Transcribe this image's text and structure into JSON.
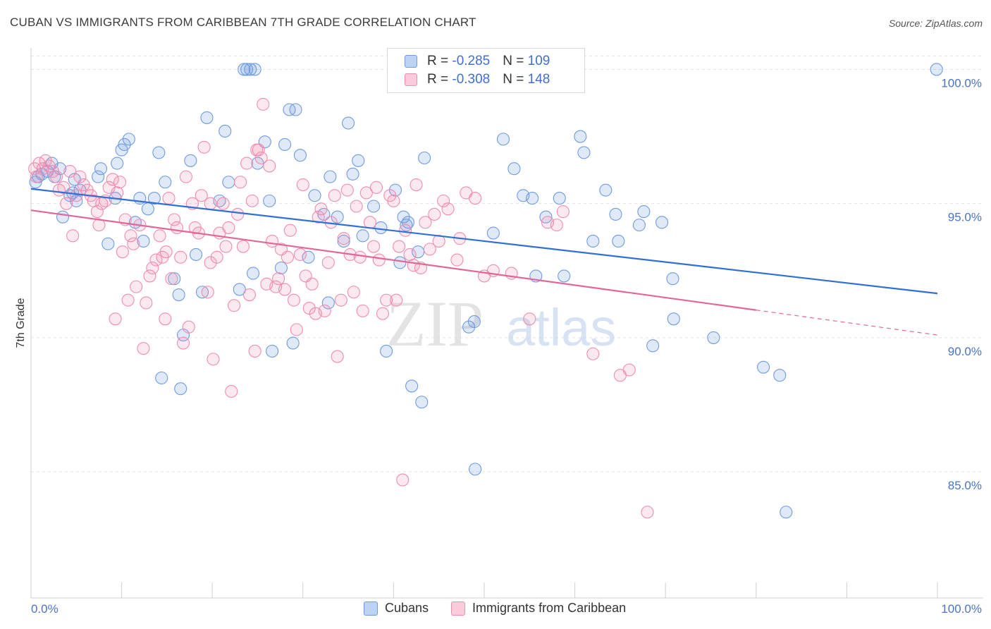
{
  "header": {
    "title": "CUBAN VS IMMIGRANTS FROM CARIBBEAN 7TH GRADE CORRELATION CHART",
    "source": "Source: ZipAtlas.com"
  },
  "watermark": {
    "zip": "ZIP",
    "atlas": "atlas"
  },
  "legend": {
    "rows": [
      {
        "r_label": "R = ",
        "r_value": "-0.285",
        "n_label": "N = ",
        "n_value": "109",
        "color": "#6f9be0"
      },
      {
        "r_label": "R = ",
        "r_value": "-0.308",
        "n_label": "N = ",
        "n_value": "148",
        "color": "#f08cb0"
      }
    ]
  },
  "bottom_legend": [
    {
      "label": "Cubans",
      "color": "#6f9be0"
    },
    {
      "label": "Immigrants from Caribbean",
      "color": "#f08cb0"
    }
  ],
  "chart_data": {
    "type": "scatter",
    "title": "CUBAN VS IMMIGRANTS FROM CARIBBEAN 7TH GRADE CORRELATION CHART",
    "xlabel": "",
    "ylabel": "7th Grade",
    "xlim": [
      0,
      100
    ],
    "ylim": [
      80.3,
      100.8
    ],
    "x_tick_labels": [
      "0.0%",
      "100.0%"
    ],
    "y_ticks": [
      85,
      90,
      95,
      100
    ],
    "y_tick_labels": [
      "85.0%",
      "90.0%",
      "95.0%",
      "100.0%"
    ],
    "grid": true,
    "series": [
      {
        "name": "Cubans",
        "color": "#6f9be0",
        "trend": {
          "x": [
            0,
            100
          ],
          "y": [
            95.55,
            91.65
          ],
          "dash_from": null
        },
        "points": [
          [
            0.5,
            95.8
          ],
          [
            0.8,
            96.0
          ],
          [
            1.2,
            96.1
          ],
          [
            1.8,
            96.2
          ],
          [
            2.3,
            96.5
          ],
          [
            2.6,
            96.0
          ],
          [
            3.2,
            96.3
          ],
          [
            3.5,
            94.5
          ],
          [
            4.3,
            95.3
          ],
          [
            4.6,
            95.4
          ],
          [
            4.8,
            95.9
          ],
          [
            5.0,
            95.1
          ],
          [
            5.4,
            95.5
          ],
          [
            7.4,
            96.0
          ],
          [
            7.7,
            96.3
          ],
          [
            8.5,
            93.5
          ],
          [
            9.3,
            95.2
          ],
          [
            9.5,
            96.5
          ],
          [
            10.0,
            97.0
          ],
          [
            10.3,
            97.2
          ],
          [
            10.8,
            97.4
          ],
          [
            11.5,
            94.3
          ],
          [
            12.0,
            95.2
          ],
          [
            12.4,
            93.6
          ],
          [
            12.9,
            94.8
          ],
          [
            13.6,
            95.2
          ],
          [
            14.1,
            96.9
          ],
          [
            14.4,
            88.5
          ],
          [
            14.8,
            95.8
          ],
          [
            15.8,
            92.2
          ],
          [
            16.3,
            91.6
          ],
          [
            16.5,
            88.1
          ],
          [
            16.8,
            90.1
          ],
          [
            17.6,
            96.6
          ],
          [
            18.2,
            93.1
          ],
          [
            18.9,
            91.7
          ],
          [
            19.4,
            98.2
          ],
          [
            20.8,
            95.1
          ],
          [
            21.4,
            97.7
          ],
          [
            21.8,
            95.8
          ],
          [
            23.0,
            91.8
          ],
          [
            23.5,
            100.0
          ],
          [
            24.2,
            100.0
          ],
          [
            24.5,
            92.4
          ],
          [
            25.0,
            96.5
          ],
          [
            25.8,
            97.3
          ],
          [
            26.3,
            95.1
          ],
          [
            26.6,
            89.5
          ],
          [
            27.6,
            92.6
          ],
          [
            28.0,
            97.2
          ],
          [
            28.5,
            98.5
          ],
          [
            28.9,
            89.8
          ],
          [
            29.2,
            98.5
          ],
          [
            29.7,
            96.8
          ],
          [
            30.6,
            93.0
          ],
          [
            31.3,
            95.3
          ],
          [
            32.3,
            94.6
          ],
          [
            32.8,
            91.3
          ],
          [
            33.0,
            96.0
          ],
          [
            33.8,
            94.5
          ],
          [
            34.5,
            93.6
          ],
          [
            35.0,
            98.0
          ],
          [
            35.5,
            96.1
          ],
          [
            36.1,
            96.6
          ],
          [
            36.6,
            93.8
          ],
          [
            37.8,
            94.9
          ],
          [
            38.6,
            94.1
          ],
          [
            39.2,
            89.5
          ],
          [
            40.2,
            95.5
          ],
          [
            40.7,
            92.8
          ],
          [
            41.1,
            94.5
          ],
          [
            41.4,
            94.2
          ],
          [
            41.6,
            94.3
          ],
          [
            42.0,
            88.2
          ],
          [
            42.7,
            93.2
          ],
          [
            43.1,
            87.6
          ],
          [
            43.4,
            96.7
          ],
          [
            48.3,
            90.4
          ],
          [
            48.9,
            90.6
          ],
          [
            49.0,
            85.1
          ],
          [
            51.0,
            93.9
          ],
          [
            52.1,
            97.4
          ],
          [
            53.3,
            96.3
          ],
          [
            54.3,
            95.3
          ],
          [
            55.3,
            95.2
          ],
          [
            55.7,
            92.3
          ],
          [
            56.8,
            94.5
          ],
          [
            58.3,
            95.2
          ],
          [
            58.8,
            92.3
          ],
          [
            60.6,
            97.5
          ],
          [
            61.0,
            96.9
          ],
          [
            62.0,
            93.6
          ],
          [
            63.4,
            95.5
          ],
          [
            64.5,
            94.6
          ],
          [
            64.8,
            93.6
          ],
          [
            67.1,
            94.2
          ],
          [
            67.6,
            94.7
          ],
          [
            68.6,
            89.7
          ],
          [
            69.6,
            94.3
          ],
          [
            70.8,
            92.2
          ],
          [
            70.9,
            90.7
          ],
          [
            75.3,
            90.0
          ],
          [
            80.8,
            88.9
          ],
          [
            82.6,
            88.6
          ],
          [
            83.3,
            83.5
          ],
          [
            23.8,
            100.0
          ],
          [
            24.7,
            100.0
          ],
          [
            99.9,
            100.0
          ]
        ]
      },
      {
        "name": "Immigrants from Caribbean",
        "color": "#f08cb0",
        "trend": {
          "x": [
            0,
            100
          ],
          "y": [
            94.75,
            90.1
          ],
          "dash_from": 80
        },
        "points": [
          [
            0.4,
            96.3
          ],
          [
            0.6,
            96.0
          ],
          [
            0.9,
            96.5
          ],
          [
            1.3,
            96.3
          ],
          [
            1.6,
            96.6
          ],
          [
            2.0,
            96.4
          ],
          [
            2.4,
            96.2
          ],
          [
            2.8,
            96.0
          ],
          [
            3.1,
            95.5
          ],
          [
            3.6,
            95.6
          ],
          [
            3.9,
            95.0
          ],
          [
            4.3,
            96.2
          ],
          [
            4.6,
            93.8
          ],
          [
            5.0,
            95.3
          ],
          [
            5.4,
            96.0
          ],
          [
            5.8,
            95.7
          ],
          [
            6.2,
            95.5
          ],
          [
            6.6,
            95.3
          ],
          [
            6.9,
            95.1
          ],
          [
            7.3,
            94.7
          ],
          [
            7.5,
            94.2
          ],
          [
            7.8,
            95.0
          ],
          [
            8.2,
            95.1
          ],
          [
            8.6,
            95.6
          ],
          [
            9.0,
            95.9
          ],
          [
            9.3,
            90.7
          ],
          [
            9.8,
            95.8
          ],
          [
            10.1,
            93.2
          ],
          [
            10.4,
            94.4
          ],
          [
            10.7,
            91.4
          ],
          [
            11.0,
            93.8
          ],
          [
            11.3,
            93.5
          ],
          [
            11.6,
            91.9
          ],
          [
            12.0,
            94.2
          ],
          [
            12.4,
            89.6
          ],
          [
            12.7,
            91.3
          ],
          [
            13.1,
            92.3
          ],
          [
            13.4,
            92.6
          ],
          [
            13.8,
            92.9
          ],
          [
            14.2,
            93.8
          ],
          [
            14.5,
            93.0
          ],
          [
            14.8,
            90.7
          ],
          [
            15.2,
            95.2
          ],
          [
            15.5,
            92.2
          ],
          [
            15.8,
            94.4
          ],
          [
            16.1,
            94.1
          ],
          [
            16.5,
            93.0
          ],
          [
            16.8,
            89.8
          ],
          [
            17.1,
            96.0
          ],
          [
            17.4,
            90.4
          ],
          [
            17.8,
            95.0
          ],
          [
            18.1,
            94.1
          ],
          [
            18.5,
            93.9
          ],
          [
            18.8,
            95.3
          ],
          [
            19.1,
            97.1
          ],
          [
            19.5,
            91.7
          ],
          [
            19.8,
            92.8
          ],
          [
            20.1,
            89.2
          ],
          [
            20.5,
            93.0
          ],
          [
            20.8,
            93.9
          ],
          [
            21.2,
            95.0
          ],
          [
            21.5,
            93.4
          ],
          [
            21.8,
            94.1
          ],
          [
            22.1,
            88.0
          ],
          [
            22.4,
            91.2
          ],
          [
            22.8,
            94.6
          ],
          [
            23.1,
            95.8
          ],
          [
            23.4,
            93.4
          ],
          [
            23.8,
            96.5
          ],
          [
            24.1,
            91.6
          ],
          [
            24.4,
            95.1
          ],
          [
            24.7,
            89.5
          ],
          [
            25.1,
            97.0
          ],
          [
            25.4,
            96.7
          ],
          [
            25.6,
            98.7
          ],
          [
            26.0,
            92.0
          ],
          [
            26.3,
            96.4
          ],
          [
            26.6,
            93.6
          ],
          [
            27.0,
            91.9
          ],
          [
            27.3,
            92.2
          ],
          [
            27.6,
            93.3
          ],
          [
            28.0,
            91.8
          ],
          [
            28.3,
            93.0
          ],
          [
            28.6,
            94.0
          ],
          [
            29.0,
            91.4
          ],
          [
            29.3,
            90.3
          ],
          [
            29.7,
            93.1
          ],
          [
            30.0,
            95.7
          ],
          [
            30.3,
            92.3
          ],
          [
            30.7,
            91.1
          ],
          [
            31.0,
            92.0
          ],
          [
            31.4,
            90.9
          ],
          [
            31.7,
            94.5
          ],
          [
            32.0,
            94.8
          ],
          [
            32.4,
            91.0
          ],
          [
            32.8,
            92.8
          ],
          [
            33.1,
            94.3
          ],
          [
            33.5,
            95.3
          ],
          [
            33.8,
            89.3
          ],
          [
            34.2,
            91.4
          ],
          [
            34.5,
            93.7
          ],
          [
            34.9,
            95.5
          ],
          [
            35.2,
            93.1
          ],
          [
            35.6,
            91.7
          ],
          [
            35.9,
            94.9
          ],
          [
            36.3,
            93.0
          ],
          [
            36.6,
            91.0
          ],
          [
            37.0,
            95.4
          ],
          [
            37.4,
            94.3
          ],
          [
            37.8,
            93.4
          ],
          [
            38.1,
            95.6
          ],
          [
            38.4,
            92.9
          ],
          [
            38.8,
            90.9
          ],
          [
            39.2,
            91.4
          ],
          [
            39.6,
            95.3
          ],
          [
            40.0,
            95.1
          ],
          [
            40.3,
            91.4
          ],
          [
            40.6,
            93.4
          ],
          [
            41.0,
            84.7
          ],
          [
            41.3,
            94.0
          ],
          [
            41.8,
            93.1
          ],
          [
            42.2,
            92.7
          ],
          [
            42.5,
            95.7
          ],
          [
            43.0,
            92.6
          ],
          [
            43.5,
            94.3
          ],
          [
            44.0,
            93.3
          ],
          [
            44.5,
            94.6
          ],
          [
            45.0,
            93.6
          ],
          [
            45.5,
            95.1
          ],
          [
            46.0,
            94.8
          ],
          [
            47.0,
            92.9
          ],
          [
            48.0,
            95.4
          ],
          [
            49.0,
            95.2
          ],
          [
            50.0,
            92.3
          ],
          [
            51.0,
            92.5
          ],
          [
            52.0,
            100.0
          ],
          [
            53.0,
            92.4
          ],
          [
            55.0,
            90.7
          ],
          [
            57.0,
            94.3
          ],
          [
            58.0,
            94.2
          ],
          [
            58.7,
            94.7
          ],
          [
            62.0,
            89.4
          ],
          [
            65.0,
            88.6
          ],
          [
            66.0,
            88.8
          ],
          [
            68.0,
            83.5
          ],
          [
            19.8,
            95.0
          ],
          [
            24.9,
            97.0
          ],
          [
            14.9,
            93.2
          ],
          [
            9.5,
            95.4
          ],
          [
            47.3,
            93.7
          ]
        ]
      }
    ]
  }
}
